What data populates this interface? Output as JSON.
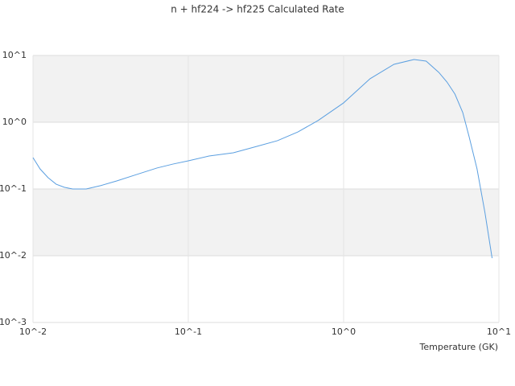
{
  "chart_data": {
    "type": "line",
    "title": "n + hf224 -> hf225 Calculated Rate",
    "xlabel": "Temperature (GK)",
    "xscale": "log",
    "yscale": "log",
    "xlim": [
      0.01,
      10
    ],
    "ylim": [
      0.001,
      10
    ],
    "xticks": [
      {
        "value": 0.01,
        "label": "10^-2"
      },
      {
        "value": 0.1,
        "label": "10^-1"
      },
      {
        "value": 1,
        "label": "10^0"
      },
      {
        "value": 10,
        "label": "10^1"
      }
    ],
    "yticks": [
      {
        "value": 0.001,
        "label": "10^-3"
      },
      {
        "value": 0.01,
        "label": "10^-2"
      },
      {
        "value": 0.1,
        "label": "10^-1"
      },
      {
        "value": 1,
        "label": "10^0"
      },
      {
        "value": 10,
        "label": "10^1"
      }
    ],
    "grid": true,
    "band_color": "#f2f2f2",
    "series": [
      {
        "color": "#5b9fe0",
        "x": [
          0.01,
          0.0111,
          0.0125,
          0.0141,
          0.0159,
          0.018,
          0.022,
          0.0272,
          0.0346,
          0.0466,
          0.0628,
          0.0795,
          0.1,
          0.136,
          0.195,
          0.278,
          0.375,
          0.508,
          0.684,
          1.0,
          1.48,
          2.11,
          2.84,
          3.4,
          4.1,
          4.63,
          5.21,
          5.85,
          6.43,
          7.23,
          8.14,
          9.04
        ],
        "values": [
          0.295,
          0.2,
          0.148,
          0.118,
          0.106,
          0.1,
          0.1,
          0.112,
          0.132,
          0.165,
          0.206,
          0.236,
          0.264,
          0.312,
          0.349,
          0.436,
          0.529,
          0.716,
          1.06,
          1.95,
          4.48,
          7.37,
          8.71,
          8.24,
          5.59,
          4.0,
          2.64,
          1.4,
          0.607,
          0.2,
          0.0436,
          0.0092
        ]
      }
    ]
  }
}
